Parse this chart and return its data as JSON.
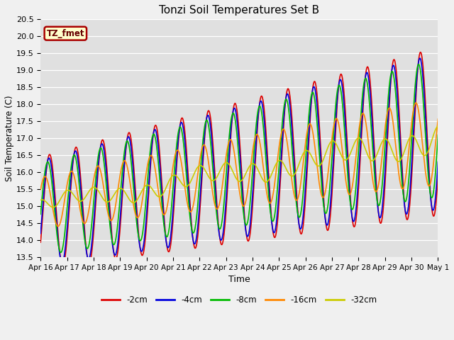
{
  "title": "Tonzi Soil Temperatures Set B",
  "xlabel": "Time",
  "ylabel": "Soil Temperature (C)",
  "ylim": [
    13.5,
    20.5
  ],
  "plot_bg_color": "#e0e0e0",
  "fig_bg_color": "#f0f0f0",
  "series": {
    "-2cm": {
      "color": "#dd0000",
      "lw": 1.2
    },
    "-4cm": {
      "color": "#0000dd",
      "lw": 1.2
    },
    "-8cm": {
      "color": "#00bb00",
      "lw": 1.2
    },
    "-16cm": {
      "color": "#ff8800",
      "lw": 1.2
    },
    "-32cm": {
      "color": "#cccc00",
      "lw": 1.2
    }
  },
  "legend_label": "TZ_fmet",
  "legend_bg": "#ffffcc",
  "legend_border": "#aa0000",
  "xtick_labels": [
    "Apr 16",
    "Apr 17",
    "Apr 18",
    "Apr 19",
    "Apr 20",
    "Apr 21",
    "Apr 22",
    "Apr 23",
    "Apr 24",
    "Apr 25",
    "Apr 26",
    "Apr 27",
    "Apr 28",
    "Apr 29",
    "Apr 30",
    "May 1"
  ],
  "yticks": [
    13.5,
    14.0,
    14.5,
    15.0,
    15.5,
    16.0,
    16.5,
    17.0,
    17.5,
    18.0,
    18.5,
    19.0,
    19.5,
    20.0,
    20.5
  ]
}
